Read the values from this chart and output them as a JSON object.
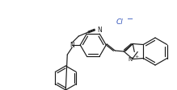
{
  "background_color": "#ffffff",
  "line_color": "#1a1a1a",
  "line_width": 0.85,
  "figsize": [
    2.19,
    1.13
  ],
  "dpi": 100,
  "Cl_color": "#3355bb",
  "label_N": "N",
  "label_Cl": "Cl",
  "label_plus": "+",
  "label_minus": "−",
  "font": "DejaVu Sans"
}
